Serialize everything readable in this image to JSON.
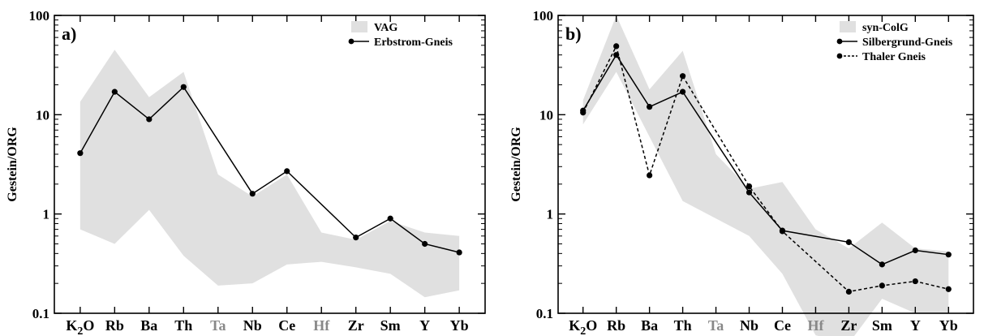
{
  "chart_data": [
    {
      "type": "line",
      "panel_label": "a)",
      "ylabel": "Gestein/ORG",
      "yscale": "log",
      "ylim": [
        0.1,
        100
      ],
      "yticks": [
        "0.1",
        "1",
        "10",
        "100"
      ],
      "categories": [
        "K2O",
        "Rb",
        "Ba",
        "Th",
        "Ta",
        "Nb",
        "Ce",
        "Hf",
        "Zr",
        "Sm",
        "Y",
        "Yb"
      ],
      "grey_categories": [
        "Ta",
        "Hf"
      ],
      "band": {
        "name": "VAG",
        "color": "#e0e0e0",
        "upper": [
          13.5,
          45,
          15,
          27,
          2.5,
          1.5,
          2.5,
          0.65,
          0.55,
          0.85,
          0.65,
          0.6
        ],
        "lower": [
          0.7,
          0.5,
          1.1,
          0.38,
          0.19,
          0.2,
          0.31,
          0.33,
          0.29,
          0.25,
          0.145,
          0.17
        ]
      },
      "series": [
        {
          "name": "Erbstrom-Gneis",
          "style": "solid",
          "color": "#000000",
          "values": [
            4.1,
            17,
            9,
            19,
            null,
            1.6,
            2.7,
            null,
            0.58,
            0.9,
            0.5,
            0.41
          ]
        }
      ],
      "legend_position": "top-right"
    },
    {
      "type": "line",
      "panel_label": "b)",
      "ylabel": "Gestein/ORG",
      "yscale": "log",
      "ylim": [
        0.1,
        100
      ],
      "yticks": [
        "0.1",
        "1",
        "10",
        "100"
      ],
      "categories": [
        "K2O",
        "Rb",
        "Ba",
        "Th",
        "Ta",
        "Nb",
        "Ce",
        "Hf",
        "Zr",
        "Sm",
        "Y",
        "Yb"
      ],
      "grey_categories": [
        "Ta",
        "Hf"
      ],
      "band": {
        "name": "syn-ColG",
        "color": "#e0e0e0",
        "upper": [
          14,
          100,
          18,
          44,
          4,
          1.8,
          2.1,
          0.7,
          0.45,
          0.82,
          0.45,
          0.42
        ],
        "lower": [
          8,
          27,
          6,
          1.35,
          0.9,
          0.6,
          0.25,
          0.06,
          0.05,
          0.14,
          0.1,
          0.1
        ]
      },
      "series": [
        {
          "name": "Silbergrund-Gneis",
          "style": "solid",
          "color": "#000000",
          "values": [
            11,
            40,
            12,
            17,
            null,
            1.65,
            0.68,
            null,
            0.52,
            0.31,
            0.43,
            0.39
          ]
        },
        {
          "name": "Thaler Gneis",
          "style": "dashed",
          "color": "#000000",
          "values": [
            10.5,
            49,
            2.45,
            24.5,
            null,
            1.9,
            0.67,
            null,
            0.165,
            0.19,
            0.21,
            0.175
          ]
        }
      ],
      "legend_position": "top-right"
    }
  ]
}
